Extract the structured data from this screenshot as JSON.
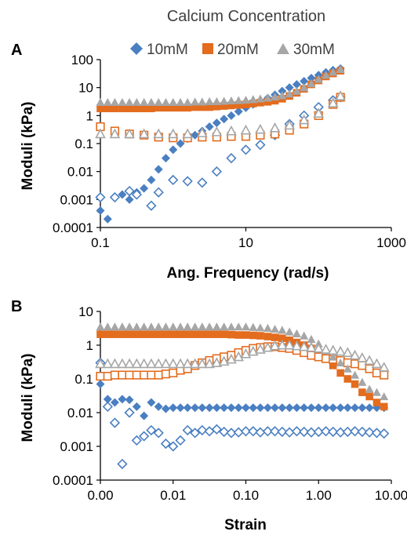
{
  "legend": {
    "title": "Calcium Concentration",
    "entries": [
      {
        "label": "10mM",
        "color": "#4a7fc1",
        "marker": "diamond"
      },
      {
        "label": "20mM",
        "color": "#e36c1e",
        "marker": "square"
      },
      {
        "label": "30mM",
        "color": "#a6a6a6",
        "marker": "triangle"
      }
    ]
  },
  "chart_data": [
    {
      "panel": "A",
      "type": "scatter",
      "xlabel": "Ang. Frequency (rad/s)",
      "ylabel": "Moduli (kPa)",
      "xscale": "log",
      "yscale": "log",
      "xlim": [
        0.1,
        1000
      ],
      "ylim": [
        0.0001,
        100
      ],
      "xticks": [
        "0.1",
        "10",
        "1000"
      ],
      "yticks": [
        "0.0001",
        "0.001",
        "0.01",
        "0.1",
        "1",
        "10",
        "100"
      ],
      "series": [
        {
          "name": "10mM",
          "modulus": "G'",
          "filled": true,
          "color": "#4a7fc1",
          "marker": "diamond",
          "x": [
            0.1,
            0.126,
            0.158,
            0.2,
            0.251,
            0.316,
            0.398,
            0.501,
            0.631,
            0.794,
            1.0,
            1.26,
            1.58,
            2.0,
            2.51,
            3.16,
            3.98,
            5.01,
            6.31,
            7.94,
            10,
            12.6,
            15.8,
            20,
            25.1,
            31.6,
            39.8,
            50.1,
            63.1,
            79.4,
            100,
            126,
            158,
            200
          ],
          "y": [
            0.0004,
            0.0002,
            0.0012,
            0.0015,
            0.001,
            0.0018,
            0.0025,
            0.005,
            0.012,
            0.03,
            0.06,
            0.1,
            0.15,
            0.2,
            0.28,
            0.4,
            0.55,
            0.75,
            1.0,
            1.4,
            1.9,
            2.5,
            3.2,
            4.2,
            5.5,
            7.5,
            10,
            13,
            17,
            22,
            28,
            35,
            42,
            48
          ]
        },
        {
          "name": "10mM",
          "modulus": "G''",
          "filled": false,
          "color": "#4a7fc1",
          "marker": "diamond",
          "x": [
            0.1,
            0.158,
            0.251,
            0.316,
            0.501,
            0.631,
            1.0,
            1.58,
            2.51,
            3.98,
            6.31,
            10,
            15.8,
            25.1,
            39.8,
            63.1,
            100,
            158,
            200
          ],
          "y": [
            0.0012,
            0.0012,
            0.002,
            0.0015,
            0.0006,
            0.0018,
            0.005,
            0.0045,
            0.004,
            0.01,
            0.03,
            0.06,
            0.09,
            0.2,
            0.5,
            1.0,
            2.0,
            3.5,
            4.5
          ]
        },
        {
          "name": "20mM",
          "modulus": "G'",
          "filled": true,
          "color": "#e36c1e",
          "marker": "square",
          "x": [
            0.1,
            0.126,
            0.158,
            0.2,
            0.251,
            0.316,
            0.398,
            0.501,
            0.631,
            0.794,
            1.0,
            1.26,
            1.58,
            2.0,
            2.51,
            3.16,
            3.98,
            5.01,
            6.31,
            7.94,
            10,
            12.6,
            15.8,
            20,
            25.1,
            31.6,
            39.8,
            50.1,
            63.1,
            79.4,
            100,
            126,
            158,
            200
          ],
          "y": [
            1.8,
            1.8,
            1.8,
            1.8,
            1.8,
            1.8,
            1.8,
            1.8,
            1.9,
            1.9,
            1.9,
            1.9,
            1.9,
            2.0,
            2.0,
            2.0,
            2.1,
            2.2,
            2.3,
            2.4,
            2.5,
            2.7,
            2.9,
            3.1,
            3.4,
            4.0,
            5.0,
            6.5,
            9,
            13,
            18,
            25,
            32,
            40
          ]
        },
        {
          "name": "20mM",
          "modulus": "G''",
          "filled": false,
          "color": "#e36c1e",
          "marker": "square",
          "x": [
            0.1,
            0.158,
            0.251,
            0.398,
            0.631,
            1.0,
            1.58,
            2.51,
            3.98,
            6.31,
            10,
            15.8,
            25.1,
            39.8,
            63.1,
            100,
            158,
            200
          ],
          "y": [
            0.4,
            0.28,
            0.22,
            0.2,
            0.17,
            0.16,
            0.16,
            0.17,
            0.17,
            0.18,
            0.18,
            0.2,
            0.22,
            0.3,
            0.5,
            1.0,
            2.5,
            4.5
          ]
        },
        {
          "name": "30mM",
          "modulus": "G'",
          "filled": true,
          "color": "#a6a6a6",
          "marker": "triangle",
          "x": [
            0.1,
            0.126,
            0.158,
            0.2,
            0.251,
            0.316,
            0.398,
            0.501,
            0.631,
            0.794,
            1.0,
            1.26,
            1.58,
            2.0,
            2.51,
            3.16,
            3.98,
            5.01,
            6.31,
            7.94,
            10,
            12.6,
            15.8,
            20,
            25.1,
            31.6,
            39.8,
            50.1,
            63.1,
            79.4,
            100,
            126,
            158,
            200
          ],
          "y": [
            3.0,
            3.0,
            3.0,
            3.0,
            3.0,
            3.0,
            3.0,
            3.0,
            3.0,
            3.0,
            3.0,
            3.0,
            3.0,
            3.1,
            3.1,
            3.2,
            3.2,
            3.3,
            3.4,
            3.5,
            3.6,
            3.8,
            4.0,
            4.3,
            4.7,
            5.2,
            6.0,
            7.5,
            10,
            14,
            20,
            28,
            36,
            45
          ]
        },
        {
          "name": "30mM",
          "modulus": "G''",
          "filled": false,
          "color": "#a6a6a6",
          "marker": "triangle",
          "x": [
            0.1,
            0.158,
            0.251,
            0.398,
            0.631,
            1.0,
            1.58,
            2.51,
            3.98,
            6.31,
            10,
            15.8,
            25.1,
            39.8,
            63.1,
            100,
            158,
            200
          ],
          "y": [
            0.22,
            0.22,
            0.22,
            0.22,
            0.22,
            0.22,
            0.22,
            0.24,
            0.26,
            0.28,
            0.3,
            0.32,
            0.36,
            0.45,
            0.7,
            1.2,
            2.8,
            5.0
          ]
        }
      ]
    },
    {
      "panel": "B",
      "type": "scatter",
      "xlabel": "Strain",
      "ylabel": "Moduli (kPa)",
      "xscale": "log",
      "yscale": "log",
      "xlim": [
        0.001,
        10
      ],
      "ylim": [
        0.0001,
        10
      ],
      "xticks": [
        "0.00",
        "0.01",
        "0.10",
        "1.00",
        "10.00"
      ],
      "yticks": [
        "0.0001",
        "0.001",
        "0.01",
        "0.1",
        "1",
        "10"
      ],
      "series": [
        {
          "name": "10mM",
          "modulus": "G'",
          "filled": true,
          "color": "#4a7fc1",
          "marker": "diamond",
          "x": [
            0.001,
            0.00126,
            0.00158,
            0.002,
            0.00251,
            0.00316,
            0.00398,
            0.00501,
            0.00631,
            0.00794,
            0.01,
            0.0126,
            0.0158,
            0.02,
            0.0251,
            0.0316,
            0.0398,
            0.0501,
            0.0631,
            0.0794,
            0.1,
            0.126,
            0.158,
            0.2,
            0.251,
            0.316,
            0.398,
            0.501,
            0.631,
            0.794,
            1.0,
            1.26,
            1.58,
            2.0,
            2.51,
            3.16,
            3.98,
            5.01,
            6.31,
            7.94
          ],
          "y": [
            0.07,
            0.025,
            0.02,
            0.025,
            0.024,
            0.015,
            0.008,
            0.02,
            0.015,
            0.013,
            0.014,
            0.014,
            0.014,
            0.014,
            0.014,
            0.014,
            0.014,
            0.014,
            0.014,
            0.014,
            0.014,
            0.014,
            0.014,
            0.014,
            0.014,
            0.014,
            0.014,
            0.014,
            0.014,
            0.014,
            0.014,
            0.014,
            0.014,
            0.014,
            0.014,
            0.014,
            0.014,
            0.014,
            0.014,
            0.014
          ]
        },
        {
          "name": "10mM",
          "modulus": "G''",
          "filled": false,
          "color": "#4a7fc1",
          "marker": "diamond",
          "x": [
            0.001,
            0.00126,
            0.00158,
            0.002,
            0.00251,
            0.00316,
            0.00398,
            0.00501,
            0.00631,
            0.00794,
            0.01,
            0.0126,
            0.0158,
            0.02,
            0.0251,
            0.0316,
            0.0398,
            0.0501,
            0.0631,
            0.0794,
            0.1,
            0.126,
            0.158,
            0.2,
            0.251,
            0.316,
            0.398,
            0.501,
            0.631,
            0.794,
            1.0,
            1.26,
            1.58,
            2.0,
            2.51,
            3.16,
            3.98,
            5.01,
            6.31,
            7.94
          ],
          "y": [
            0.3,
            0.015,
            0.005,
            0.0003,
            0.01,
            0.0015,
            0.002,
            0.003,
            0.0025,
            0.0012,
            0.001,
            0.0015,
            0.003,
            0.0025,
            0.003,
            0.0028,
            0.0032,
            0.0027,
            0.0025,
            0.0026,
            0.0028,
            0.0028,
            0.0026,
            0.0028,
            0.0028,
            0.0027,
            0.0026,
            0.0028,
            0.0027,
            0.0026,
            0.0027,
            0.0028,
            0.0027,
            0.0026,
            0.0027,
            0.0028,
            0.0027,
            0.0026,
            0.0025,
            0.0024
          ]
        },
        {
          "name": "20mM",
          "modulus": "G'",
          "filled": true,
          "color": "#e36c1e",
          "marker": "square",
          "x": [
            0.001,
            0.00126,
            0.00158,
            0.002,
            0.00251,
            0.00316,
            0.00398,
            0.00501,
            0.00631,
            0.00794,
            0.01,
            0.0126,
            0.0158,
            0.02,
            0.0251,
            0.0316,
            0.0398,
            0.0501,
            0.0631,
            0.0794,
            0.1,
            0.126,
            0.158,
            0.2,
            0.251,
            0.316,
            0.398,
            0.501,
            0.631,
            0.794,
            1.0,
            1.26,
            1.58,
            2.0,
            2.51,
            3.16,
            3.98,
            5.01,
            6.31,
            7.94
          ],
          "y": [
            2.1,
            2.1,
            2.1,
            2.1,
            2.1,
            2.1,
            2.1,
            2.1,
            2.1,
            2.1,
            2.1,
            2.1,
            2.1,
            2.1,
            2.1,
            2.1,
            2.1,
            2.1,
            2.05,
            2.0,
            2.0,
            1.95,
            1.9,
            1.8,
            1.7,
            1.6,
            1.4,
            1.2,
            1.0,
            0.8,
            0.6,
            0.4,
            0.25,
            0.15,
            0.1,
            0.07,
            0.04,
            0.03,
            0.02,
            0.015
          ]
        },
        {
          "name": "20mM",
          "modulus": "G''",
          "filled": false,
          "color": "#e36c1e",
          "marker": "square",
          "x": [
            0.001,
            0.00126,
            0.00158,
            0.002,
            0.00251,
            0.00316,
            0.00398,
            0.00501,
            0.00631,
            0.00794,
            0.01,
            0.0126,
            0.0158,
            0.02,
            0.0251,
            0.0316,
            0.0398,
            0.0501,
            0.0631,
            0.0794,
            0.1,
            0.126,
            0.158,
            0.2,
            0.251,
            0.316,
            0.398,
            0.501,
            0.631,
            0.794,
            1.0,
            1.26,
            1.58,
            2.0,
            2.51,
            3.16,
            3.98,
            5.01,
            6.31,
            7.94
          ],
          "y": [
            0.12,
            0.12,
            0.13,
            0.13,
            0.13,
            0.13,
            0.13,
            0.13,
            0.13,
            0.14,
            0.15,
            0.18,
            0.2,
            0.25,
            0.3,
            0.35,
            0.4,
            0.45,
            0.5,
            0.6,
            0.7,
            0.8,
            0.85,
            0.9,
            0.9,
            0.85,
            0.8,
            0.7,
            0.6,
            0.5,
            0.45,
            0.4,
            0.38,
            0.35,
            0.3,
            0.28,
            0.25,
            0.2,
            0.15,
            0.13
          ]
        },
        {
          "name": "30mM",
          "modulus": "G'",
          "filled": true,
          "color": "#a6a6a6",
          "marker": "triangle",
          "x": [
            0.001,
            0.00126,
            0.00158,
            0.002,
            0.00251,
            0.00316,
            0.00398,
            0.00501,
            0.00631,
            0.00794,
            0.01,
            0.0126,
            0.0158,
            0.02,
            0.0251,
            0.0316,
            0.0398,
            0.0501,
            0.0631,
            0.0794,
            0.1,
            0.126,
            0.158,
            0.2,
            0.251,
            0.316,
            0.398,
            0.501,
            0.631,
            0.794,
            1.0,
            1.26,
            1.58,
            2.0,
            2.51,
            3.16,
            3.98,
            5.01,
            6.31,
            7.94
          ],
          "y": [
            3.5,
            3.5,
            3.5,
            3.5,
            3.5,
            3.5,
            3.5,
            3.5,
            3.5,
            3.5,
            3.5,
            3.5,
            3.5,
            3.5,
            3.5,
            3.5,
            3.5,
            3.5,
            3.5,
            3.5,
            3.5,
            3.4,
            3.3,
            3.2,
            3.0,
            2.8,
            2.5,
            2.2,
            1.9,
            1.5,
            1.1,
            0.7,
            0.45,
            0.3,
            0.2,
            0.13,
            0.08,
            0.05,
            0.04,
            0.03
          ]
        },
        {
          "name": "30mM",
          "modulus": "G''",
          "filled": false,
          "color": "#a6a6a6",
          "marker": "triangle",
          "x": [
            0.001,
            0.00126,
            0.00158,
            0.002,
            0.00251,
            0.00316,
            0.00398,
            0.00501,
            0.00631,
            0.00794,
            0.01,
            0.0126,
            0.0158,
            0.02,
            0.0251,
            0.0316,
            0.0398,
            0.0501,
            0.0631,
            0.0794,
            0.1,
            0.126,
            0.158,
            0.2,
            0.251,
            0.316,
            0.398,
            0.501,
            0.631,
            0.794,
            1.0,
            1.26,
            1.58,
            2.0,
            2.51,
            3.16,
            3.98,
            5.01,
            6.31,
            7.94
          ],
          "y": [
            0.28,
            0.28,
            0.28,
            0.28,
            0.28,
            0.28,
            0.28,
            0.28,
            0.28,
            0.28,
            0.28,
            0.28,
            0.28,
            0.28,
            0.28,
            0.28,
            0.3,
            0.33,
            0.38,
            0.45,
            0.55,
            0.65,
            0.75,
            0.85,
            0.95,
            1.0,
            1.0,
            0.95,
            0.9,
            0.85,
            0.8,
            0.75,
            0.7,
            0.65,
            0.6,
            0.5,
            0.42,
            0.35,
            0.28,
            0.22
          ]
        }
      ]
    }
  ]
}
